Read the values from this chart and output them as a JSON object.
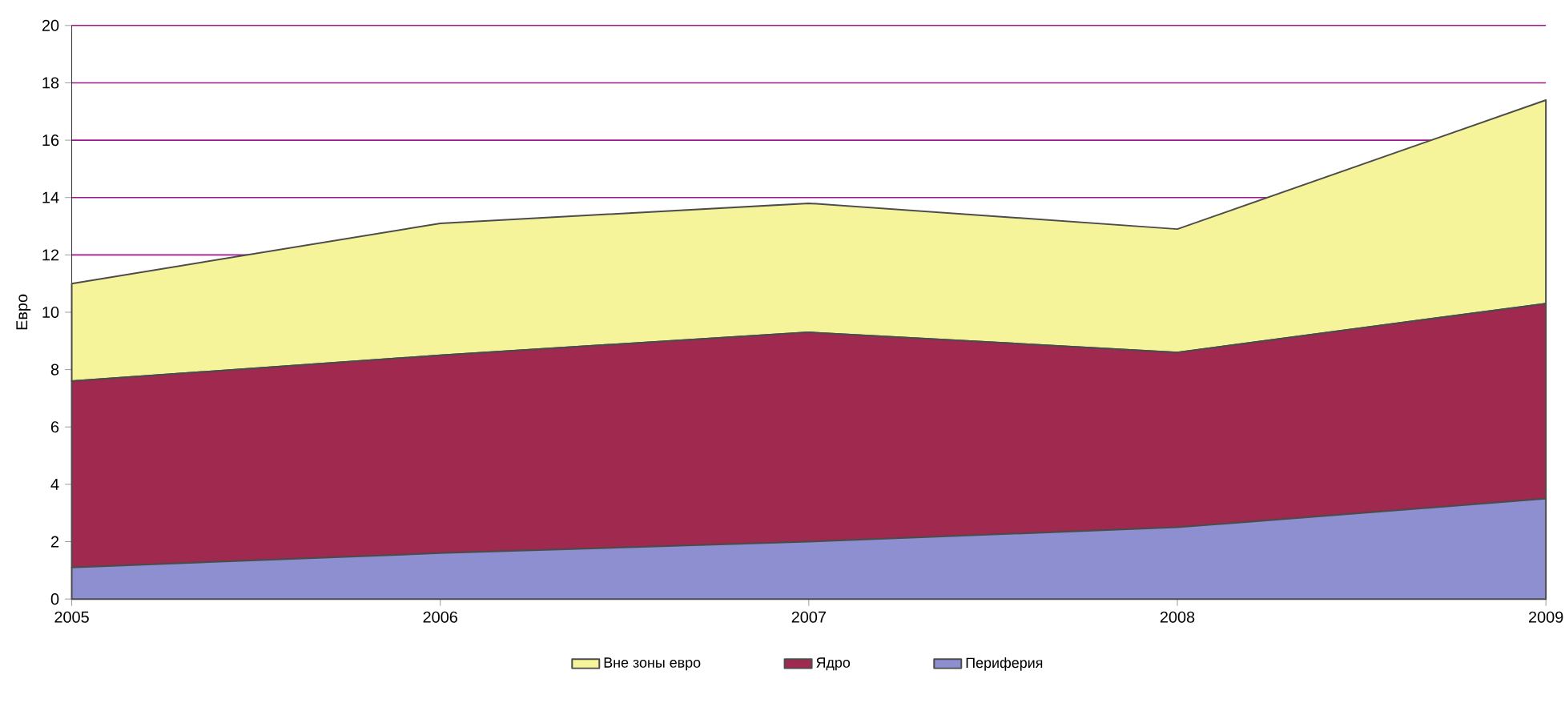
{
  "chart_data": {
    "type": "area",
    "stacked": true,
    "ylabel": "Евро",
    "x": [
      2005,
      2006,
      2007,
      2008,
      2009
    ],
    "xlim": [
      2005,
      2009
    ],
    "xticks": [
      2005,
      2006,
      2007,
      2008,
      2009
    ],
    "ylim": [
      0,
      20
    ],
    "yticks": [
      0,
      2,
      4,
      6,
      8,
      10,
      12,
      14,
      16,
      18,
      20
    ],
    "grid": "y",
    "legend": "bottom",
    "series": [
      {
        "name": "Периферия",
        "color": "#8e8fd0",
        "values": [
          1.1,
          1.6,
          2.0,
          2.5,
          3.5
        ]
      },
      {
        "name": "Ядро",
        "color": "#a0294f",
        "values": [
          6.5,
          6.9,
          7.3,
          6.1,
          6.8
        ]
      },
      {
        "name": "Вне зоны евро",
        "color": "#f6f49a",
        "values": [
          3.4,
          4.6,
          4.5,
          4.3,
          7.1
        ]
      }
    ]
  }
}
